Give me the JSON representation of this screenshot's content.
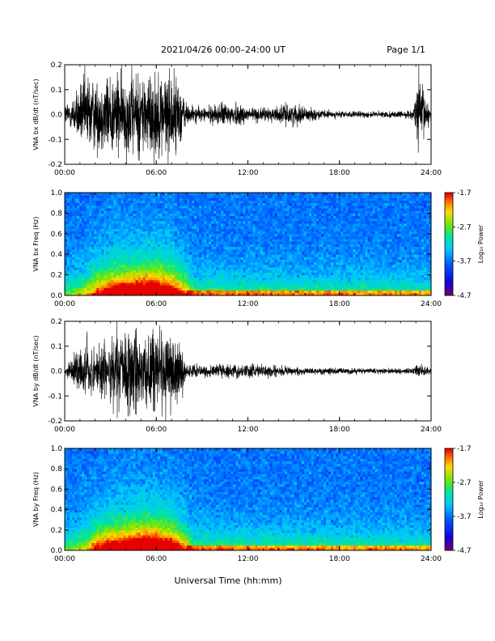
{
  "header": {
    "title": "2021/04/26  00:00–24:00 UT",
    "page": "Page 1/1"
  },
  "footer": {
    "xlabel": "Universal Time (hh:mm)"
  },
  "colorbar": {
    "label": "Log₁₀ Power",
    "ticks": [
      "-1.7",
      "-2.7",
      "-3.7",
      "-4.7"
    ]
  },
  "chart_data": [
    {
      "type": "line",
      "ylabel": "VNA bx dB/dt (nT/sec)",
      "xlim": [
        0,
        24
      ],
      "ylim": [
        -0.2,
        0.2
      ],
      "xticks": [
        "00:00",
        "06:00",
        "12:00",
        "18:00",
        "24:00"
      ],
      "yticks": [
        "0.2",
        "0.1",
        "0.0",
        "-0.1",
        "-0.2"
      ],
      "envelope": {
        "x": [
          0,
          0.5,
          1,
          1.5,
          2,
          3,
          4,
          5,
          6,
          7,
          7.5,
          8,
          9,
          10,
          11,
          12,
          13,
          14,
          15,
          16,
          17,
          18,
          19,
          20,
          21,
          22,
          22.8,
          23.2,
          23.6,
          24
        ],
        "amp": [
          0.05,
          0.08,
          0.14,
          0.2,
          0.16,
          0.2,
          0.2,
          0.2,
          0.2,
          0.2,
          0.16,
          0.05,
          0.03,
          0.05,
          0.06,
          0.04,
          0.03,
          0.04,
          0.05,
          0.03,
          0.02,
          0.015,
          0.015,
          0.015,
          0.015,
          0.015,
          0.02,
          0.2,
          0.1,
          0.03
        ]
      }
    },
    {
      "type": "heatmap",
      "ylabel": "VNA bx Freq (Hz)",
      "xlim": [
        0,
        24
      ],
      "ylim": [
        0,
        1.0
      ],
      "xticks": [
        "00:00",
        "06:00",
        "12:00",
        "18:00",
        "24:00"
      ],
      "yticks": [
        "1.0",
        "0.8",
        "0.6",
        "0.4",
        "0.2",
        "0.0"
      ],
      "zlim": [
        -4.7,
        -1.7
      ],
      "colorbar_label": "Log₁₀ Power"
    },
    {
      "type": "line",
      "ylabel": "VNA by dB/dt (nT/sec)",
      "xlim": [
        0,
        24
      ],
      "ylim": [
        -0.2,
        0.2
      ],
      "xticks": [
        "00:00",
        "06:00",
        "12:00",
        "18:00",
        "24:00"
      ],
      "yticks": [
        "0.2",
        "0.1",
        "0.0",
        "-0.1",
        "-0.2"
      ],
      "envelope": {
        "x": [
          0,
          0.5,
          1,
          1.5,
          2,
          3,
          4,
          5,
          6,
          7,
          7.5,
          8,
          9,
          10,
          11,
          12,
          13,
          14,
          15,
          16,
          17,
          18,
          19,
          20,
          21,
          22,
          22.8,
          23.2,
          23.6,
          24
        ],
        "amp": [
          0.03,
          0.05,
          0.12,
          0.14,
          0.12,
          0.16,
          0.2,
          0.2,
          0.2,
          0.18,
          0.14,
          0.03,
          0.025,
          0.03,
          0.03,
          0.03,
          0.03,
          0.03,
          0.02,
          0.015,
          0.015,
          0.015,
          0.015,
          0.012,
          0.012,
          0.012,
          0.015,
          0.03,
          0.02,
          0.015
        ]
      }
    },
    {
      "type": "heatmap",
      "ylabel": "VNA by Freq (Hz)",
      "xlim": [
        0,
        24
      ],
      "ylim": [
        0,
        1.0
      ],
      "xticks": [
        "00:00",
        "06:00",
        "12:00",
        "18:00",
        "24:00"
      ],
      "yticks": [
        "1.0",
        "0.8",
        "0.6",
        "0.4",
        "0.2",
        "0.0"
      ],
      "zlim": [
        -4.7,
        -1.7
      ],
      "colorbar_label": "Log₁₀ Power"
    }
  ]
}
